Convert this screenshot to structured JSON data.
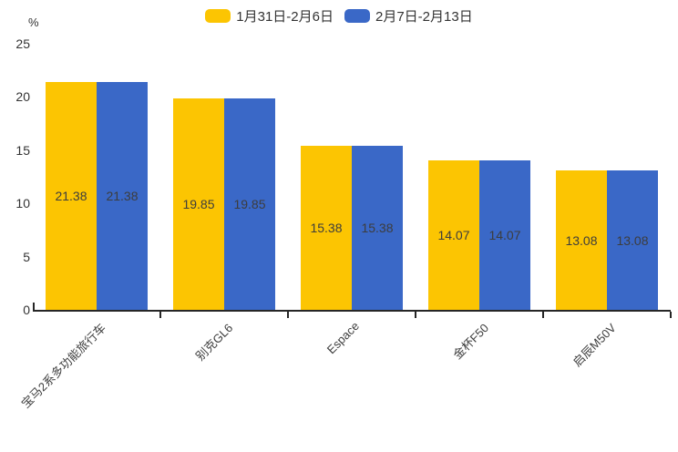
{
  "chart_data": {
    "type": "bar",
    "unit": "%",
    "ylabel": "%",
    "categories": [
      "宝马2系多功能旅行车",
      "别克GL6",
      "Espace",
      "金杯F50",
      "启辰M50V"
    ],
    "series": [
      {
        "name": "1月31日-2月6日",
        "color": "#FCC502",
        "values": [
          21.38,
          19.85,
          15.38,
          14.07,
          13.08
        ]
      },
      {
        "name": "2月7日-2月13日",
        "color": "#3A68C7",
        "values": [
          21.38,
          19.85,
          15.38,
          14.07,
          13.08
        ]
      }
    ],
    "ylim": [
      0,
      25
    ],
    "yticks": [
      0,
      5,
      10,
      15,
      20,
      25
    ],
    "grid": false,
    "legend_position": "top",
    "value_labels": "inside-center",
    "category_label_rotation": -45
  },
  "colors": {
    "axis": "#262626",
    "text": "#3d3d3d",
    "background": "#ffffff"
  }
}
